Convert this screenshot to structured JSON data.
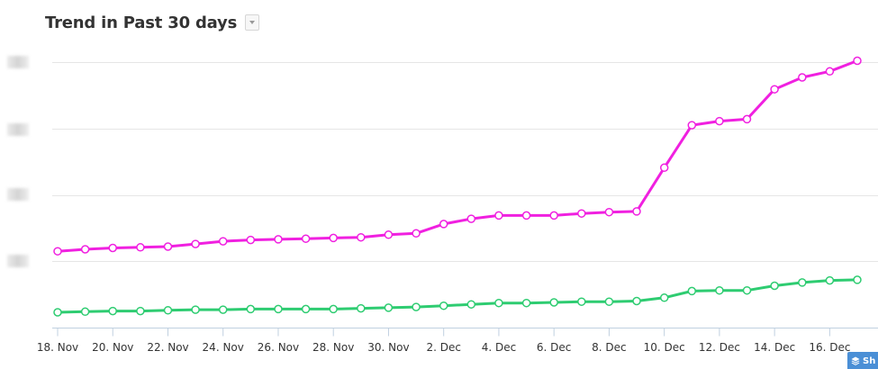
{
  "header": {
    "title": "Trend in Past 30 days"
  },
  "corner_button": {
    "label": "Sh"
  },
  "colors": {
    "series_1": "#f020e0",
    "series_2": "#2ecc71",
    "grid": "#e6e6e6",
    "axis": "#c0d0e0"
  },
  "chart_data": {
    "type": "line",
    "title": "Trend in Past 30 days",
    "xlabel": "",
    "ylabel": "",
    "x": [
      "18. Nov",
      "19. Nov",
      "20. Nov",
      "21. Nov",
      "22. Nov",
      "23. Nov",
      "24. Nov",
      "25. Nov",
      "26. Nov",
      "27. Nov",
      "28. Nov",
      "29. Nov",
      "30. Nov",
      "1. Dec",
      "2. Dec",
      "3. Dec",
      "4. Dec",
      "5. Dec",
      "6. Dec",
      "7. Dec",
      "8. Dec",
      "9. Dec",
      "10. Dec",
      "11. Dec",
      "12. Dec",
      "13. Dec",
      "14. Dec",
      "15. Dec",
      "16. Dec",
      "17. Dec"
    ],
    "tick_labels": [
      "18. Nov",
      "20. Nov",
      "22. Nov",
      "24. Nov",
      "26. Nov",
      "28. Nov",
      "30. Nov",
      "2. Dec",
      "4. Dec",
      "6. Dec",
      "8. Dec",
      "10. Dec",
      "12. Dec",
      "14. Dec",
      "16. Dec"
    ],
    "ylim": [
      0,
      4
    ],
    "y_tick_values": [
      1,
      2,
      3,
      4
    ],
    "y_tick_labels_obscured": true,
    "grid": true,
    "series": [
      {
        "color": "#f020e0",
        "values": [
          1.15,
          1.18,
          1.2,
          1.21,
          1.22,
          1.26,
          1.3,
          1.32,
          1.33,
          1.34,
          1.35,
          1.36,
          1.4,
          1.42,
          1.56,
          1.64,
          1.69,
          1.69,
          1.69,
          1.72,
          1.74,
          1.75,
          2.41,
          3.05,
          3.11,
          3.14,
          3.59,
          3.77,
          3.86,
          4.02
        ]
      },
      {
        "color": "#2ecc71",
        "values": [
          0.23,
          0.24,
          0.25,
          0.25,
          0.26,
          0.27,
          0.27,
          0.28,
          0.28,
          0.28,
          0.28,
          0.29,
          0.3,
          0.31,
          0.33,
          0.35,
          0.37,
          0.37,
          0.38,
          0.39,
          0.39,
          0.4,
          0.45,
          0.55,
          0.56,
          0.56,
          0.63,
          0.68,
          0.71,
          0.72
        ]
      }
    ]
  }
}
